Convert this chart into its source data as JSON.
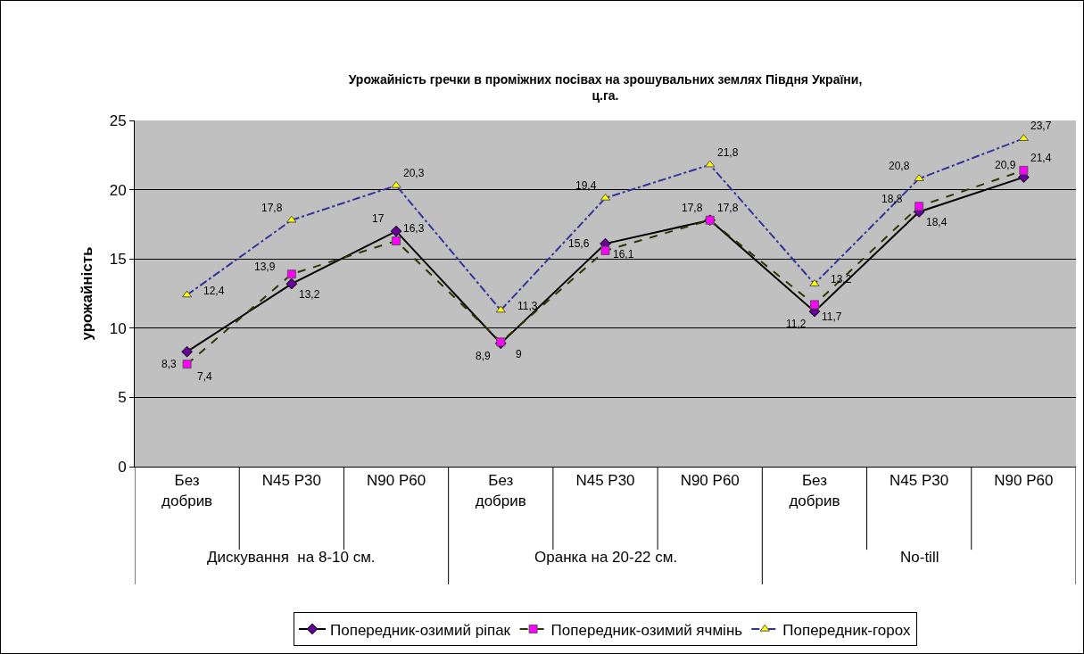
{
  "chart_data": {
    "type": "line",
    "title": "Урожайність гречки в проміжних посівах на зрошувальних землях Півдня України,\nц.га.",
    "ylabel": "урожайність",
    "categories": [
      "Без добрив",
      "N45 P30",
      "N90 P60",
      "Без добрив",
      "N45 P30",
      "N90 P60",
      "Без добрив",
      "N45 P30",
      "N90 P60"
    ],
    "annotations": [
      "Дискування  на 8-10 см.",
      "Оранка на 20-22 см.",
      "No-till"
    ],
    "series": [
      {
        "name": "Попередник-озимий ріпак",
        "color": "#000000",
        "marker": "diamond",
        "line_style": "solid",
        "colors": [
          "#660099",
          "#660099",
          "#660099",
          "#660099",
          "#660099",
          "#660099",
          "#660099",
          "#660099",
          "#660099"
        ],
        "values": [
          8.3,
          13.2,
          17,
          8.9,
          16.1,
          17.8,
          11.2,
          18.4,
          20.9
        ],
        "value_labels": [
          "8,3",
          "13,2",
          "17",
          "8,9",
          "16,1",
          "17,8",
          "11,2",
          "18,4",
          "20,9"
        ]
      },
      {
        "name": "Попередник-озимий ячмінь",
        "color": "#333300",
        "marker": "square",
        "line_style": "dashed",
        "colors": [
          "#ff00ff",
          "#ff00ff",
          "#ff00ff",
          "#ff00ff",
          "#ff00ff",
          "#ff00ff",
          "#ff00ff",
          "#ff00ff",
          "#ff00ff"
        ],
        "values": [
          7.4,
          13.9,
          16.3,
          9,
          15.6,
          17.8,
          11.7,
          18.8,
          21.4
        ],
        "value_labels": [
          "7,4",
          "13,9",
          "16,3",
          "9",
          "15,6",
          "17,8",
          "11,7",
          "18,8",
          "21,4"
        ]
      },
      {
        "name": "Попередник-горох",
        "color": "#333399",
        "marker": "triangle",
        "line_style": "dashdot",
        "colors": [
          "#ffff00",
          "#ffff00",
          "#ffff00",
          "#ffff00",
          "#ffff00",
          "#ffff00",
          "#ffff00",
          "#ffff00",
          "#ffff00"
        ],
        "values": [
          12.4,
          17.8,
          20.3,
          11.3,
          19.4,
          21.8,
          13.2,
          20.8,
          23.7
        ],
        "value_labels": [
          "12,4",
          "17,8",
          "20,3",
          "11,3",
          "19,4",
          "21,8",
          "13,2",
          "20,8",
          "23,7"
        ]
      }
    ],
    "ylim": [
      0,
      25
    ],
    "yticks": [
      0,
      5,
      10,
      15,
      20,
      25
    ],
    "grid": "y",
    "legend": "bottom"
  }
}
